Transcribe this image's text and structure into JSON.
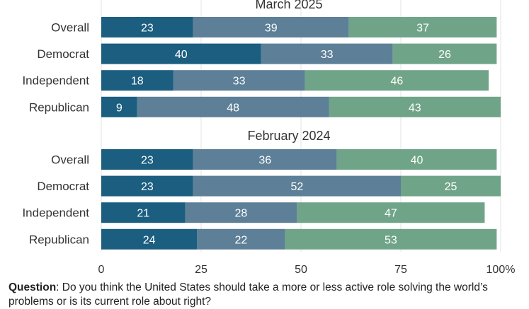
{
  "chart_data": {
    "type": "bar",
    "orientation": "horizontal",
    "stacked": true,
    "x_ticks": [
      "0",
      "25",
      "50",
      "75",
      "100%"
    ],
    "xlim": [
      0,
      100
    ],
    "grid": true,
    "colors": [
      "#1b5e80",
      "#5d7f97",
      "#70a488"
    ],
    "groups": [
      {
        "title": "March 2025",
        "categories": [
          "Overall",
          "Democrat",
          "Independent",
          "Republican"
        ],
        "series": [
          {
            "values": [
              23,
              40,
              18,
              9
            ]
          },
          {
            "values": [
              39,
              33,
              33,
              48
            ]
          },
          {
            "values": [
              37,
              26,
              46,
              43
            ]
          }
        ]
      },
      {
        "title": "February 2024",
        "categories": [
          "Overall",
          "Democrat",
          "Independent",
          "Republican"
        ],
        "series": [
          {
            "values": [
              23,
              23,
              21,
              24
            ]
          },
          {
            "values": [
              36,
              52,
              28,
              22
            ]
          },
          {
            "values": [
              40,
              25,
              47,
              53
            ]
          }
        ]
      }
    ]
  },
  "footnote": {
    "label": "Question",
    "text": ": Do you think the United States should take a more or less active role solving the world’s problems or is its current role about right?"
  }
}
